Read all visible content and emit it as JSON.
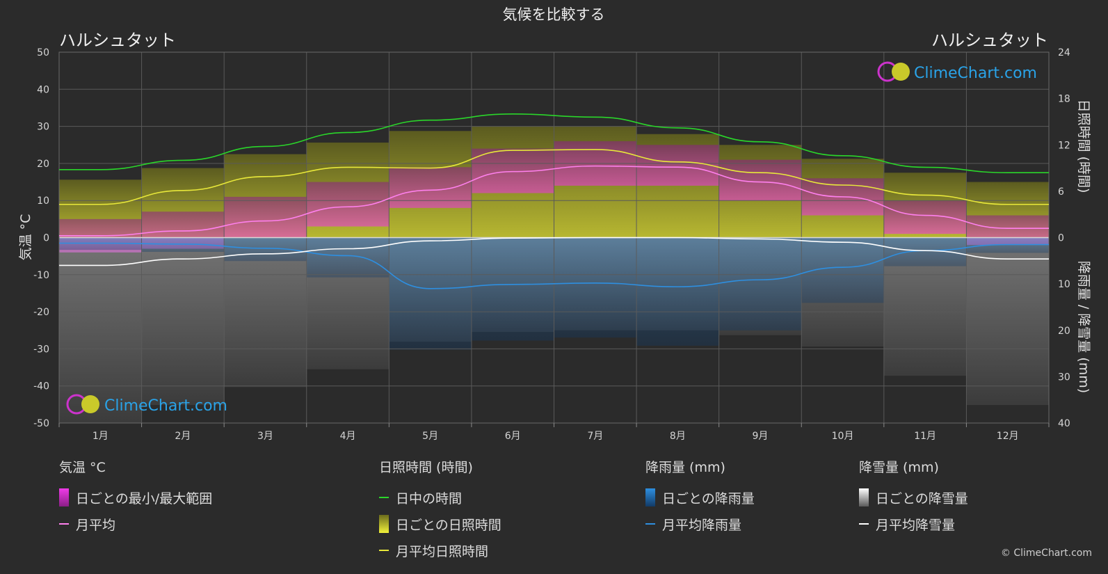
{
  "title": "気候を比較する",
  "location_left": "ハルシュタット",
  "location_right": "ハルシュタット",
  "logo_text": "ClimeChart.com",
  "copyright": "© ClimeChart.com",
  "colors": {
    "background": "#2b2b2b",
    "temp_range": "#e020d8",
    "temp_avg": "#ff80ee",
    "daylight": "#2ad62a",
    "sunshine_fill": "#b9b92e",
    "sunshine_avg": "#e8e83a",
    "rain": "#1f78c8",
    "rain_avg": "#2e8fe0",
    "snow": "#bdbdbd",
    "snow_avg": "#ffffff"
  },
  "chart_data": {
    "type": "line",
    "months": [
      "1月",
      "2月",
      "3月",
      "4月",
      "5月",
      "6月",
      "7月",
      "8月",
      "9月",
      "10月",
      "11月",
      "12月"
    ],
    "left_axis": {
      "label": "気温 °C",
      "range": [
        -50,
        50
      ],
      "ticks": [
        "50",
        "40",
        "30",
        "20",
        "10",
        "0",
        "-10",
        "-20",
        "-30",
        "-40",
        "-50"
      ]
    },
    "right_axis_top": {
      "label": "日照時間 (時間)",
      "range": [
        0,
        24
      ],
      "ticks": [
        "24",
        "18",
        "12",
        "6",
        "0"
      ]
    },
    "right_axis_bottom": {
      "label": "降雨量 / 降雪量 (mm)",
      "range": [
        0,
        40
      ],
      "ticks": [
        "10",
        "20",
        "30",
        "40"
      ]
    },
    "grid": true,
    "series": [
      {
        "name": "日中の時間",
        "axis": "sunshine_hours",
        "values": [
          8.8,
          10.0,
          11.8,
          13.6,
          15.2,
          16.0,
          15.6,
          14.2,
          12.4,
          10.6,
          9.1,
          8.4
        ]
      },
      {
        "name": "月平均日照時間",
        "axis": "sunshine_hours",
        "values": [
          4.3,
          6.1,
          7.9,
          9.1,
          9.0,
          11.3,
          11.4,
          9.8,
          8.4,
          6.8,
          5.5,
          4.3
        ]
      },
      {
        "name": "月平均",
        "axis": "temperature_c",
        "values": [
          0.5,
          1.8,
          4.5,
          8.3,
          12.8,
          17.8,
          19.3,
          19.0,
          15.0,
          11.0,
          6.0,
          2.5
        ]
      },
      {
        "name": "月平均降雨量",
        "axis": "precip_mm",
        "values": [
          1.2,
          1.4,
          2.3,
          3.9,
          11.0,
          10.1,
          9.8,
          10.6,
          9.1,
          6.4,
          2.8,
          1.5
        ]
      },
      {
        "name": "月平均降雪量",
        "axis": "precip_mm",
        "values": [
          6.0,
          4.6,
          3.5,
          2.4,
          0.7,
          0.1,
          0.0,
          0.0,
          0.3,
          1.0,
          2.8,
          4.6
        ]
      }
    ],
    "daily_temp_range_monthly": {
      "min": [
        -4,
        -3,
        0,
        3,
        8,
        12,
        14,
        14,
        10,
        6,
        1,
        -2
      ],
      "max": [
        5,
        7,
        11,
        15,
        19,
        24,
        26,
        25,
        21,
        16,
        10,
        6
      ]
    },
    "daily_sunshine_max_monthly": [
      7.5,
      9.0,
      10.8,
      12.3,
      13.8,
      14.4,
      14.4,
      13.4,
      12.0,
      10.2,
      8.4,
      7.2
    ]
  },
  "legend": {
    "temperature": {
      "header": "気温 °C",
      "items": [
        "日ごとの最小/最大範囲",
        "月平均"
      ]
    },
    "sunshine": {
      "header": "日照時間 (時間)",
      "items": [
        "日中の時間",
        "日ごとの日照時間",
        "月平均日照時間"
      ]
    },
    "rain": {
      "header": "降雨量 (mm)",
      "items": [
        "日ごとの降雨量",
        "月平均降雨量"
      ]
    },
    "snow": {
      "header": "降雪量 (mm)",
      "items": [
        "日ごとの降雪量",
        "月平均降雪量"
      ]
    }
  }
}
